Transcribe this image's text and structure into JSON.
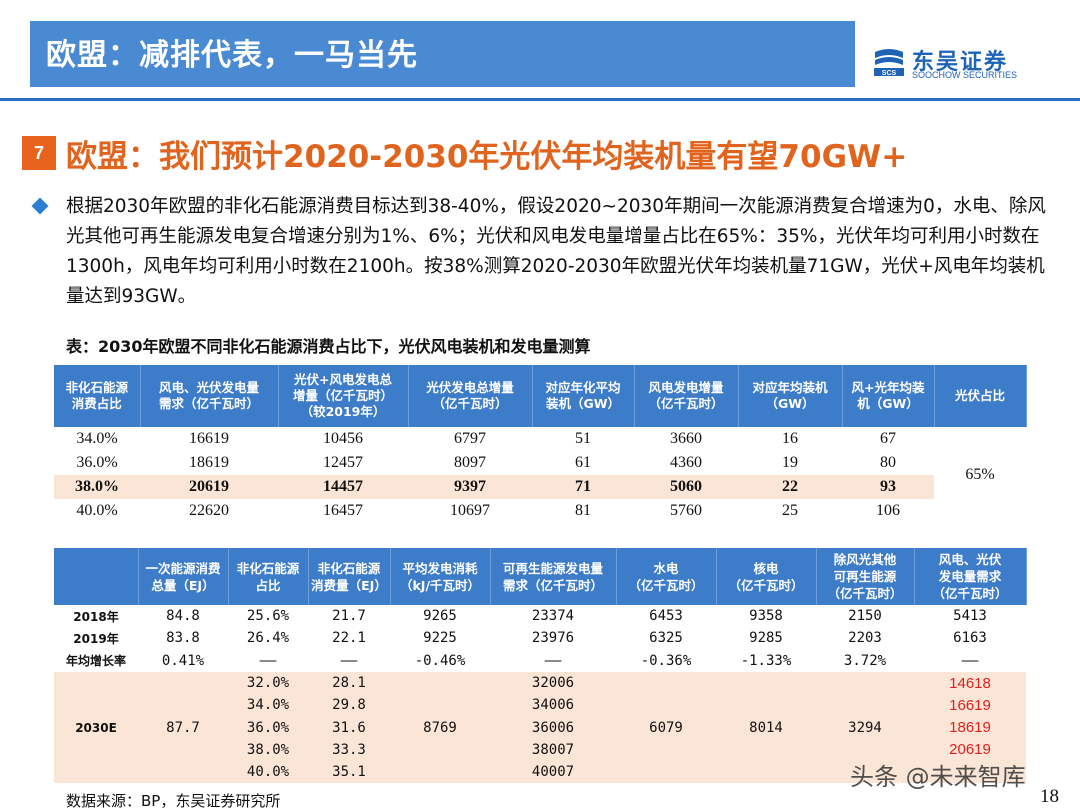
{
  "header": {
    "title": "欧盟：减排代表，一马当先",
    "logo_cn": "东吴证券",
    "logo_en": "SOOCHOW SECURITIES",
    "logo_mark": "SCS"
  },
  "section": {
    "number": "7",
    "title": "欧盟：我们预计2020-2030年光伏年均装机量有望70GW+"
  },
  "bullet": "根据2030年欧盟的非化石能源消费目标达到38-40%，假设2020~2030年期间一次能源消费复合增速为0，水电、除风光其他可再生能源发电复合增速分别为1%、6%；光伏和风电发电量增量占比在65%：35%，光伏年均可利用小时数在1300h，风电年均可利用小时数在2100h。按38%测算2020-2030年欧盟光伏年均装机量71GW，光伏+风电年均装机量达到93GW。",
  "table1": {
    "caption": "表：2030年欧盟不同非化石能源消费占比下，光伏风电装机和发电量测算",
    "headers": [
      [
        "非化石能源",
        "消费占比"
      ],
      [
        "风电、光伏发电量",
        "需求（亿千瓦时）"
      ],
      [
        "光伏+风电发电总",
        "增量（亿千瓦时）",
        "（较2019年）"
      ],
      [
        "光伏发电总增量",
        "（亿千瓦时）"
      ],
      [
        "对应年化平均",
        "装机（GW）"
      ],
      [
        "风电发电增量",
        "（亿千瓦时）"
      ],
      [
        "对应年均装机",
        "（GW）"
      ],
      [
        "风+光年均装",
        "机（GW）"
      ],
      [
        "光伏占比"
      ]
    ],
    "rows": [
      [
        "34.0%",
        "16619",
        "10456",
        "6797",
        "51",
        "3660",
        "16",
        "67"
      ],
      [
        "36.0%",
        "18619",
        "12457",
        "8097",
        "61",
        "4360",
        "19",
        "80"
      ],
      [
        "38.0%",
        "20619",
        "14457",
        "9397",
        "71",
        "5060",
        "22",
        "93"
      ],
      [
        "40.0%",
        "22620",
        "16457",
        "10697",
        "81",
        "5760",
        "25",
        "106"
      ]
    ],
    "pv_share": "65%"
  },
  "table2": {
    "headers": [
      [
        ""
      ],
      [
        "一次能源消费",
        "总量（EJ）"
      ],
      [
        "非化石能源",
        "占比"
      ],
      [
        "非化石能源",
        "消费量（EJ）"
      ],
      [
        "平均发电消耗",
        "（kJ/千瓦时）"
      ],
      [
        "可再生能源发电量",
        "需求（亿千瓦时）"
      ],
      [
        "水电",
        "（亿千瓦时）"
      ],
      [
        "核电",
        "（亿千瓦时）"
      ],
      [
        "除风光其他",
        "可再生能源",
        "（亿千瓦时）"
      ],
      [
        "风电、光伏",
        "发电量需求",
        "（亿千瓦时）"
      ]
    ],
    "rows": [
      [
        "2018年",
        "84.8",
        "25.6%",
        "21.7",
        "9265",
        "23374",
        "6453",
        "9358",
        "2150",
        "5413"
      ],
      [
        "2019年",
        "83.8",
        "26.4%",
        "22.1",
        "9225",
        "23976",
        "6325",
        "9285",
        "2203",
        "6163"
      ],
      [
        "年均增长率",
        "0.41%",
        "——",
        "——",
        "-0.46%",
        "——",
        "-0.36%",
        "-1.33%",
        "3.72%",
        "——"
      ]
    ],
    "forecast": {
      "label": "2030E",
      "primary_energy": "87.7",
      "avg_consumption": "8769",
      "hydro": "6079",
      "nuclear": "8014",
      "other_renewable": "3294",
      "shares": [
        "32.0%",
        "34.0%",
        "36.0%",
        "38.0%",
        "40.0%"
      ],
      "nonfossil": [
        "28.1",
        "29.8",
        "31.6",
        "33.3",
        "35.1"
      ],
      "renewable_demand": [
        "32006",
        "34006",
        "36006",
        "38007",
        "40007"
      ],
      "wind_pv_demand": [
        "14618",
        "16619",
        "18619",
        "20619",
        ""
      ]
    }
  },
  "source": "数据来源：BP，东吴证券研究所",
  "page_number": "18",
  "watermark": "头条 @未来智库",
  "colors": {
    "header_blue": "#4a8ad3",
    "table_header_blue": "#3d7cc8",
    "accent_orange": "#e0641e",
    "highlight_pink": "#fbe5d6",
    "red_text": "#e02020"
  }
}
